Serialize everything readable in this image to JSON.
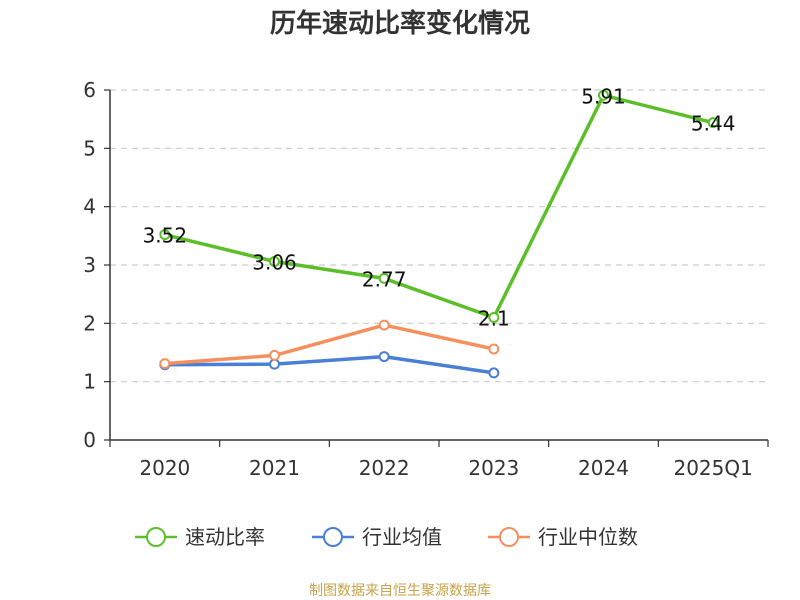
{
  "chart_data": {
    "type": "line",
    "title": "历年速动比率变化情况",
    "categories": [
      "2020",
      "2021",
      "2022",
      "2023",
      "2024",
      "2025Q1"
    ],
    "ylim": [
      0,
      6
    ],
    "yticks": [
      "0",
      "1",
      "2",
      "3",
      "4",
      "5",
      "6"
    ],
    "grid": true,
    "legend_position": "bottom",
    "series": [
      {
        "name": "速动比率",
        "color": "#5cbf2a",
        "values": [
          3.52,
          3.06,
          2.77,
          2.1,
          5.91,
          5.44
        ],
        "labels": [
          "3.52",
          "3.06",
          "2.77",
          "2.1",
          "5.91",
          "5.44"
        ]
      },
      {
        "name": "行业均值",
        "color": "#4a7fd6",
        "values": [
          1.29,
          1.3,
          1.43,
          1.15,
          null,
          null
        ]
      },
      {
        "name": "行业中位数",
        "color": "#f5905e",
        "values": [
          1.31,
          1.45,
          1.97,
          1.56,
          null,
          null
        ]
      }
    ],
    "source": "制图数据来自恒生聚源数据库"
  }
}
